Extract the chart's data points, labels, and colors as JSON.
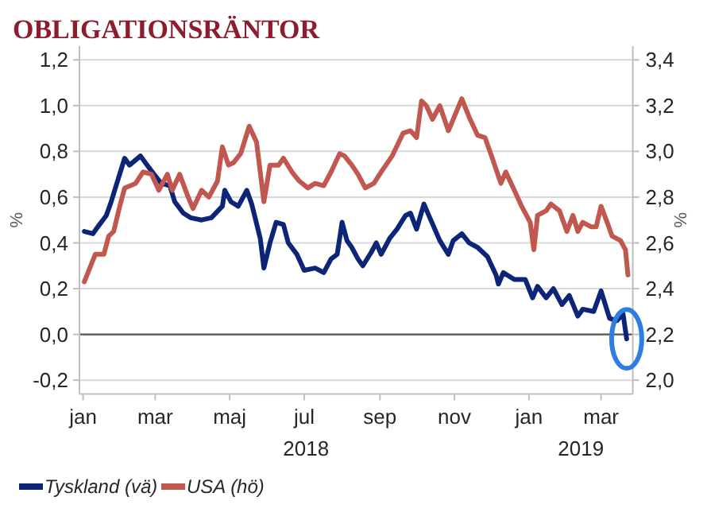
{
  "chart_data": {
    "type": "line",
    "title": "OBLIGATIONSRÄNTOR",
    "ylabel": "%",
    "y2label": "%",
    "xlim": [
      "2017-12-29",
      "2019-03-27"
    ],
    "xticks": [
      {
        "value": "2018-01-01",
        "label": "jan"
      },
      {
        "value": "2018-03-01",
        "label": "mar"
      },
      {
        "value": "2018-05-01",
        "label": "maj"
      },
      {
        "value": "2018-07-01",
        "label": "jul"
      },
      {
        "value": "2018-09-01",
        "label": "sep"
      },
      {
        "value": "2018-11-01",
        "label": "nov"
      },
      {
        "value": "2019-01-01",
        "label": "jan"
      },
      {
        "value": "2019-03-01",
        "label": "mar"
      }
    ],
    "ylim": [
      -0.26,
      1.26
    ],
    "yticks": [
      {
        "value": -0.2,
        "label": "-0,2"
      },
      {
        "value": 0,
        "label": "0,0"
      },
      {
        "value": 0.2,
        "label": "0,2"
      },
      {
        "value": 0.4,
        "label": "0,4"
      },
      {
        "value": 0.6,
        "label": "0,6"
      },
      {
        "value": 0.8,
        "label": "0,8"
      },
      {
        "value": 1.0,
        "label": "1,0"
      },
      {
        "value": 1.2,
        "label": "1,2"
      }
    ],
    "y2lim": [
      1.94,
      3.46
    ],
    "y2ticks": [
      {
        "value": 2.0,
        "label": "2,0"
      },
      {
        "value": 2.2,
        "label": "2,2"
      },
      {
        "value": 2.4,
        "label": "2,4"
      },
      {
        "value": 2.6,
        "label": "2,6"
      },
      {
        "value": 2.8,
        "label": "2,8"
      },
      {
        "value": 3.0,
        "label": "3,0"
      },
      {
        "value": 3.2,
        "label": "3,2"
      },
      {
        "value": 3.4,
        "label": "3,4"
      }
    ],
    "grid": "y",
    "legend": "bottom left",
    "ref_lines": [
      {
        "axis": "y",
        "value": 0,
        "color": "#595959"
      }
    ],
    "annotations": [
      "2018",
      "2019"
    ],
    "series": [
      {
        "name": "Tyskland (vä)",
        "color": "#0c2577",
        "x": [
          "2018-01-02",
          "2018-01-09",
          "2018-01-13",
          "2018-01-20",
          "2018-01-24",
          "2018-01-28",
          "2018-02-04",
          "2018-02-08",
          "2018-02-17",
          "2018-02-21",
          "2018-02-28",
          "2018-03-06",
          "2018-03-13",
          "2018-03-17",
          "2018-03-24",
          "2018-03-30",
          "2018-04-08",
          "2018-04-16",
          "2018-04-25",
          "2018-04-27",
          "2018-05-02",
          "2018-05-08",
          "2018-05-15",
          "2018-05-19",
          "2018-05-26",
          "2018-05-29",
          "2018-06-03",
          "2018-06-08",
          "2018-06-14",
          "2018-06-18",
          "2018-06-25",
          "2018-07-01",
          "2018-07-10",
          "2018-07-17",
          "2018-07-23",
          "2018-07-28",
          "2018-08-01",
          "2018-08-05",
          "2018-08-09",
          "2018-08-14",
          "2018-08-18",
          "2018-08-25",
          "2018-08-29",
          "2018-09-02",
          "2018-09-09",
          "2018-09-15",
          "2018-09-22",
          "2018-09-26",
          "2018-10-01",
          "2018-10-07",
          "2018-10-11",
          "2018-10-20",
          "2018-10-27",
          "2018-10-31",
          "2018-11-07",
          "2018-11-13",
          "2018-11-20",
          "2018-11-28",
          "2018-12-05",
          "2018-12-07",
          "2018-12-11",
          "2018-12-20",
          "2018-12-29",
          "2019-01-04",
          "2019-01-08",
          "2019-01-15",
          "2019-01-21",
          "2019-01-28",
          "2019-02-03",
          "2019-02-10",
          "2019-02-14",
          "2019-02-23",
          "2019-03-01",
          "2019-03-08",
          "2019-03-14",
          "2019-03-19",
          "2019-03-22"
        ],
        "values": [
          0.45,
          0.44,
          0.47,
          0.52,
          0.58,
          0.65,
          0.77,
          0.74,
          0.78,
          0.75,
          0.7,
          0.66,
          0.65,
          0.58,
          0.53,
          0.51,
          0.5,
          0.51,
          0.56,
          0.63,
          0.58,
          0.56,
          0.63,
          0.57,
          0.42,
          0.29,
          0.4,
          0.49,
          0.48,
          0.4,
          0.35,
          0.28,
          0.29,
          0.27,
          0.33,
          0.35,
          0.49,
          0.41,
          0.38,
          0.33,
          0.3,
          0.36,
          0.4,
          0.35,
          0.42,
          0.46,
          0.52,
          0.53,
          0.46,
          0.57,
          0.52,
          0.41,
          0.35,
          0.41,
          0.44,
          0.4,
          0.38,
          0.34,
          0.26,
          0.22,
          0.27,
          0.24,
          0.24,
          0.16,
          0.21,
          0.16,
          0.2,
          0.13,
          0.17,
          0.08,
          0.11,
          0.1,
          0.19,
          0.07,
          0.06,
          0.09,
          -0.02
        ]
      },
      {
        "name": "USA (hö)",
        "color": "#c0584f",
        "axis": "y2",
        "x": [
          "2018-01-02",
          "2018-01-05",
          "2018-01-11",
          "2018-01-18",
          "2018-01-22",
          "2018-01-26",
          "2018-01-31",
          "2018-02-04",
          "2018-02-13",
          "2018-02-19",
          "2018-02-26",
          "2018-03-04",
          "2018-03-11",
          "2018-03-15",
          "2018-03-21",
          "2018-03-28",
          "2018-04-01",
          "2018-04-08",
          "2018-04-14",
          "2018-04-21",
          "2018-04-25",
          "2018-04-30",
          "2018-05-04",
          "2018-05-10",
          "2018-05-17",
          "2018-05-23",
          "2018-05-29",
          "2018-06-03",
          "2018-06-10",
          "2018-06-14",
          "2018-06-21",
          "2018-06-27",
          "2018-07-04",
          "2018-07-10",
          "2018-07-17",
          "2018-07-23",
          "2018-07-30",
          "2018-08-03",
          "2018-08-09",
          "2018-08-14",
          "2018-08-20",
          "2018-08-27",
          "2018-09-02",
          "2018-09-11",
          "2018-09-20",
          "2018-09-26",
          "2018-10-01",
          "2018-10-05",
          "2018-10-09",
          "2018-10-14",
          "2018-10-20",
          "2018-10-27",
          "2018-10-31",
          "2018-11-07",
          "2018-11-13",
          "2018-11-20",
          "2018-11-26",
          "2018-12-02",
          "2018-12-09",
          "2018-12-13",
          "2018-12-20",
          "2018-12-26",
          "2019-01-02",
          "2019-01-05",
          "2019-01-08",
          "2019-01-15",
          "2019-01-19",
          "2019-01-26",
          "2019-02-01",
          "2019-02-06",
          "2019-02-10",
          "2019-02-14",
          "2019-02-21",
          "2019-02-25",
          "2019-03-01",
          "2019-03-06",
          "2019-03-10",
          "2019-03-17",
          "2019-03-21",
          "2019-03-23"
        ],
        "values": [
          2.43,
          2.47,
          2.55,
          2.55,
          2.63,
          2.65,
          2.76,
          2.84,
          2.86,
          2.91,
          2.9,
          2.83,
          2.9,
          2.83,
          2.9,
          2.8,
          2.75,
          2.83,
          2.8,
          2.87,
          3.02,
          2.94,
          2.95,
          2.99,
          3.11,
          3.04,
          2.78,
          2.94,
          2.94,
          2.97,
          2.91,
          2.87,
          2.84,
          2.86,
          2.85,
          2.91,
          2.99,
          2.98,
          2.94,
          2.9,
          2.84,
          2.86,
          2.91,
          2.98,
          3.08,
          3.09,
          3.06,
          3.22,
          3.2,
          3.14,
          3.2,
          3.09,
          3.14,
          3.23,
          3.15,
          3.07,
          3.06,
          2.97,
          2.86,
          2.91,
          2.83,
          2.76,
          2.69,
          2.57,
          2.72,
          2.74,
          2.77,
          2.74,
          2.65,
          2.72,
          2.65,
          2.69,
          2.67,
          2.67,
          2.76,
          2.69,
          2.63,
          2.61,
          2.57,
          2.46
        ]
      }
    ]
  }
}
